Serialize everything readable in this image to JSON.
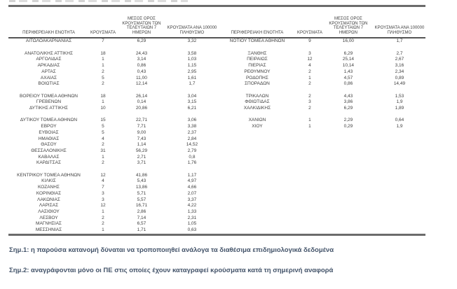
{
  "colors": {
    "table_text": "#3f3f3f",
    "rule": "#6b6b6b",
    "note_text": "#44546a",
    "background": "#ffffff"
  },
  "table": {
    "columns": [
      {
        "label": "ΠΕΡΙΦΕΡΕΙΑΚΗ ΕΝΟΤΗΤΑ"
      },
      {
        "label": "ΚΡΟΥΣΜΑΤΑ"
      },
      {
        "label": "ΜΕΣΟΣ ΟΡΟΣ\nΚΡΟΥΣΜΑΤΩΝ ΤΩΝ\nΤΕΛΕΥΤΑΙΩΝ 7 ΗΜΕΡΩΝ"
      },
      {
        "label": "ΚΡΟΥΣΜΑΤΑ ΑΝΑ 100000\nΠΛΗΘΥΣΜΟ"
      }
    ],
    "row_slots": [
      {
        "left": [
          "ΑΙΤΩΛΟΑΚΑΡΝΑΝΙΑΣ",
          "7",
          "6,29",
          "3,32"
        ],
        "right": [
          "ΝΟΤΙΟΥ ΤΟΜΕΑ ΑΘΗΝΩΝ",
          "9",
          "16,00",
          "1,7"
        ]
      },
      {
        "left": null,
        "right": null
      },
      {
        "left": [
          "ΑΝΑΤΟΛΙΚΗΣ ΑΤΤΙΚΗΣ",
          "18",
          "24,43",
          "3,58"
        ],
        "right": [
          "ΞΑΝΘΗΣ",
          "3",
          "6,29",
          "2,7"
        ]
      },
      {
        "left": [
          "ΑΡΓΟΛΙΔΑΣ",
          "1",
          "3,14",
          "1,03"
        ],
        "right": [
          "ΠΕΙΡΑΙΩΣ",
          "12",
          "25,14",
          "2,67"
        ]
      },
      {
        "left": [
          "ΑΡΚΑΔΙΑΣ",
          "1",
          "0,86",
          "1,15"
        ],
        "right": [
          "ΠΙΕΡΙΑΣ",
          "4",
          "10,14",
          "3,16"
        ]
      },
      {
        "left": [
          "ΑΡΤΑΣ",
          "2",
          "0,43",
          "2,95"
        ],
        "right": [
          "ΡΕΘΥΜΝΟΥ",
          "2",
          "1,43",
          "2,34"
        ]
      },
      {
        "left": [
          "ΑΧΑΪΑΣ",
          "5",
          "11,00",
          "1,61"
        ],
        "right": [
          "ΡΟΔΟΠΗΣ",
          "1",
          "4,57",
          "0,89"
        ]
      },
      {
        "left": [
          "ΒΟΙΩΤΙΑΣ",
          "2",
          "12,14",
          "1,7"
        ],
        "right": [
          "ΣΠΟΡΑΔΩΝ",
          "2",
          "0,86",
          "14,49"
        ]
      },
      {
        "left": null,
        "right": null
      },
      {
        "left": [
          "ΒΟΡΕΙΟΥ ΤΟΜΕΑ ΑΘΗΝΩΝ",
          "18",
          "26,14",
          "3,04"
        ],
        "right": [
          "ΤΡΙΚΑΛΩΝ",
          "2",
          "4,43",
          "1,53"
        ]
      },
      {
        "left": [
          "ΓΡΕΒΕΝΩΝ",
          "1",
          "0,14",
          "3,15"
        ],
        "right": [
          "ΦΘΙΩΤΙΔΑΣ",
          "3",
          "3,86",
          "1,9"
        ]
      },
      {
        "left": [
          "ΔΥΤΙΚΗΣ ΑΤΤΙΚΗΣ",
          "10",
          "20,86",
          "6,21"
        ],
        "right": [
          "ΧΑΛΚΙΔΙΚΗΣ",
          "2",
          "6,29",
          "1,89"
        ]
      },
      {
        "left": null,
        "right": null
      },
      {
        "left": [
          "ΔΥΤΙΚΟΥ ΤΟΜΕΑ ΑΘΗΝΩΝ",
          "15",
          "22,71",
          "3,06"
        ],
        "right": [
          "ΧΑΝΙΩΝ",
          "1",
          "2,29",
          "0,64"
        ]
      },
      {
        "left": [
          "ΕΒΡΟΥ",
          "5",
          "7,71",
          "3,38"
        ],
        "right": [
          "ΧΙΟΥ",
          "1",
          "0,29",
          "1,9"
        ]
      },
      {
        "left": [
          "ΕΥΒΟΙΑΣ",
          "5",
          "9,00",
          "2,37"
        ],
        "right": null
      },
      {
        "left": [
          "ΗΜΑΘΙΑΣ",
          "4",
          "7,43",
          "2,84"
        ],
        "right": null
      },
      {
        "left": [
          "ΘΑΣΟΥ",
          "2",
          "1,14",
          "14,52"
        ],
        "right": null
      },
      {
        "left": [
          "ΘΕΣΣΑΛΟΝΙΚΗΣ",
          "31",
          "56,29",
          "2,79"
        ],
        "right": null
      },
      {
        "left": [
          "ΚΑΒΑΛΑΣ",
          "1",
          "2,71",
          "0,8"
        ],
        "right": null
      },
      {
        "left": [
          "ΚΑΡΔΙΤΣΑΣ",
          "2",
          "3,71",
          "1,76"
        ],
        "right": null
      },
      {
        "left": null,
        "right": null
      },
      {
        "left": [
          "ΚΕΝΤΡΙΚΟΥ ΤΟΜΕΑ ΑΘΗΝΩΝ",
          "12",
          "41,86",
          "1,17"
        ],
        "right": null
      },
      {
        "left": [
          "ΚΙΛΚΙΣ",
          "4",
          "5,43",
          "4,97"
        ],
        "right": null
      },
      {
        "left": [
          "ΚΟΖΑΝΗΣ",
          "7",
          "13,86",
          "4,66"
        ],
        "right": null
      },
      {
        "left": [
          "ΚΟΡΙΝΘΙΑΣ",
          "3",
          "5,71",
          "2,07"
        ],
        "right": null
      },
      {
        "left": [
          "ΛΑΚΩΝΙΑΣ",
          "3",
          "5,57",
          "3,37"
        ],
        "right": null
      },
      {
        "left": [
          "ΛΑΡΙΣΑΣ",
          "12",
          "16,71",
          "4,22"
        ],
        "right": null
      },
      {
        "left": [
          "ΛΑΣΙΘΙΟΥ",
          "1",
          "2,86",
          "1,33"
        ],
        "right": null
      },
      {
        "left": [
          "ΛΕΣΒΟΥ",
          "2",
          "7,14",
          "2,31"
        ],
        "right": null
      },
      {
        "left": [
          "ΜΑΓΝΗΣΙΑΣ",
          "2",
          "6,57",
          "1,05"
        ],
        "right": null
      },
      {
        "left": [
          "ΜΕΣΣΗΝΙΑΣ",
          "1",
          "1,71",
          "0,63"
        ],
        "right": null
      }
    ]
  },
  "notes": [
    "Σημ.1: η παρούσα κατανομή δύναται να τροποποιηθεί ανάλογα τα διαθέσιμα επιδημιολογικά δεδομένα",
    "Σημ.2: αναγράφονται μόνο οι ΠΕ στις οποίες έχουν καταγραφεί κρούσματα κατά τη σημερινή αναφορά"
  ]
}
